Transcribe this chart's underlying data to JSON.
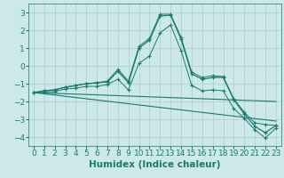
{
  "x": [
    0,
    1,
    2,
    3,
    4,
    5,
    6,
    7,
    8,
    9,
    10,
    11,
    12,
    13,
    14,
    15,
    16,
    17,
    18,
    19,
    20,
    21,
    22,
    23
  ],
  "main_line": [
    -1.5,
    -1.4,
    -1.35,
    -1.2,
    -1.1,
    -1.0,
    -0.95,
    -0.9,
    -0.3,
    -0.95,
    1.0,
    1.45,
    2.8,
    2.85,
    1.5,
    -0.45,
    -0.75,
    -0.65,
    -0.65,
    -1.9,
    -2.7,
    -3.4,
    -3.75,
    -3.35
  ],
  "upper_band": [
    -1.5,
    -1.4,
    -1.35,
    -1.2,
    -1.1,
    -1.0,
    -0.95,
    -0.85,
    -0.2,
    -0.85,
    1.1,
    1.55,
    2.9,
    2.9,
    1.6,
    -0.35,
    -0.65,
    -0.55,
    -0.6,
    -1.85,
    -2.6,
    -3.2,
    -3.3,
    -3.35
  ],
  "lower_band": [
    -1.5,
    -1.45,
    -1.45,
    -1.3,
    -1.25,
    -1.15,
    -1.15,
    -1.05,
    -0.75,
    -1.35,
    0.15,
    0.55,
    1.85,
    2.3,
    0.85,
    -1.1,
    -1.4,
    -1.35,
    -1.4,
    -2.4,
    -2.95,
    -3.6,
    -4.05,
    -3.5
  ],
  "trend1_x": [
    0,
    23
  ],
  "trend1_y": [
    -1.5,
    -2.0
  ],
  "trend2_x": [
    0,
    23
  ],
  "trend2_y": [
    -1.5,
    -3.1
  ],
  "background_color": "#cce8e8",
  "grid_color": "#aacccc",
  "line_color": "#1a7a6e",
  "ylim": [
    -4.5,
    3.5
  ],
  "xlim": [
    -0.5,
    23.5
  ],
  "yticks": [
    -4,
    -3,
    -2,
    -1,
    0,
    1,
    2,
    3
  ],
  "xticks": [
    0,
    1,
    2,
    3,
    4,
    5,
    6,
    7,
    8,
    9,
    10,
    11,
    12,
    13,
    14,
    15,
    16,
    17,
    18,
    19,
    20,
    21,
    22,
    23
  ],
  "xlabel": "Humidex (Indice chaleur)",
  "xlabel_fontsize": 7.5,
  "tick_fontsize": 6.5
}
